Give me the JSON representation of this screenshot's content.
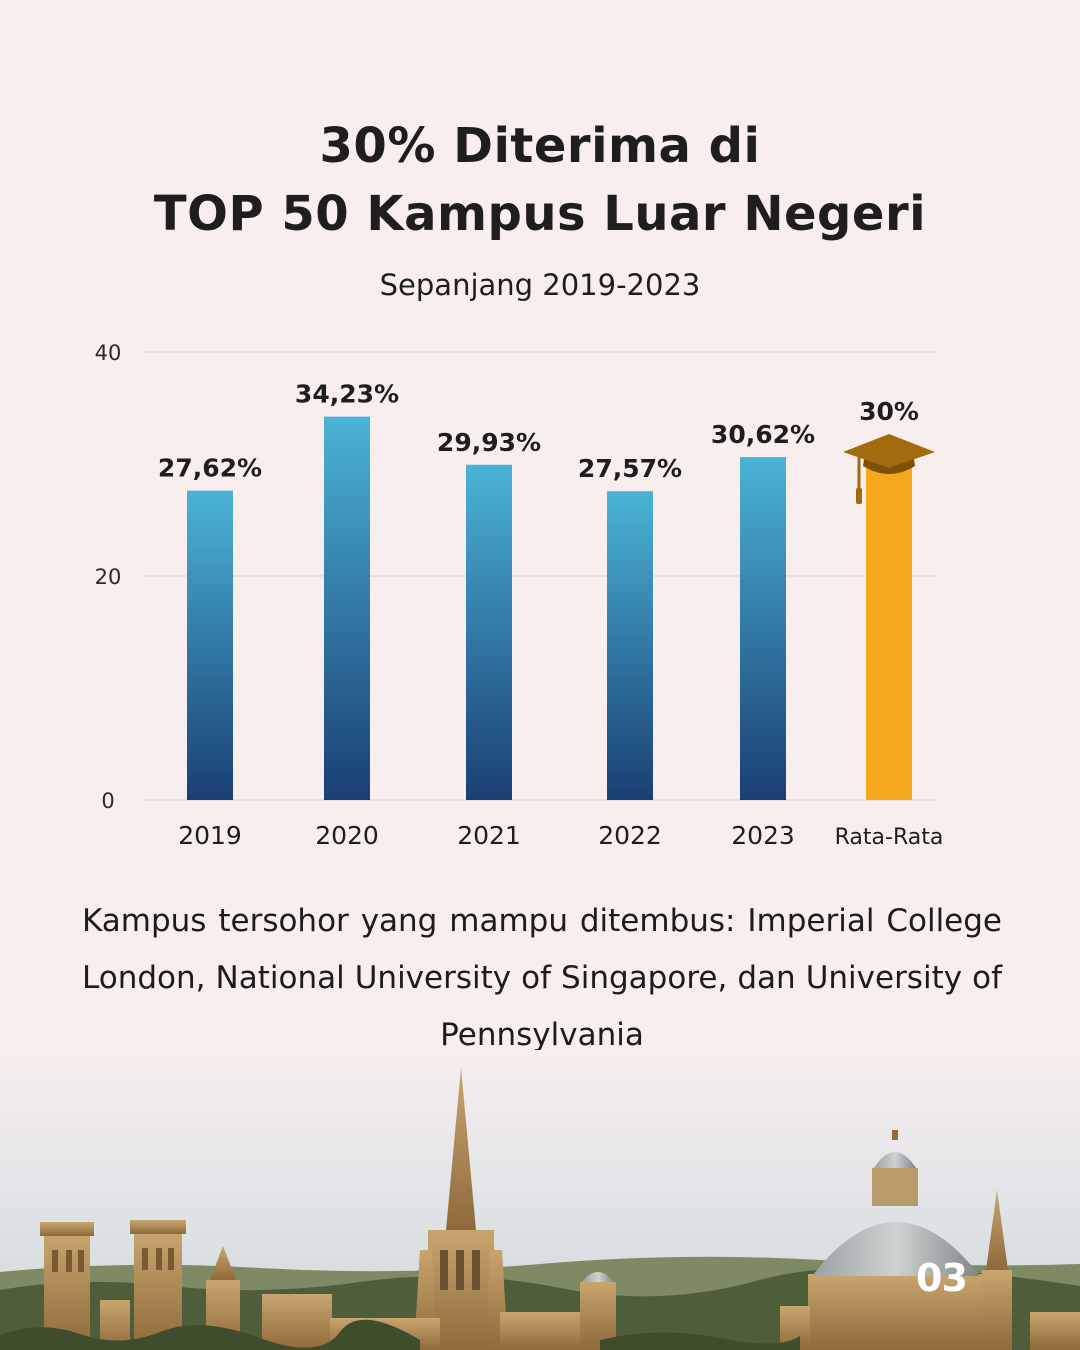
{
  "title": {
    "line1": "30% Diterima di",
    "line2": "TOP 50 Kampus Luar Negeri"
  },
  "subtitle": "Sepanjang 2019-2023",
  "caption": "Kampus tersohor yang mampu ditembus: Imperial College London, National University of Singapore, dan University of Pennsylvania",
  "page_number": "03",
  "chart_data": {
    "type": "bar",
    "categories": [
      "2019",
      "2020",
      "2021",
      "2022",
      "2023",
      "Rata-Rata"
    ],
    "values": [
      27.62,
      34.23,
      29.93,
      27.57,
      30.62,
      30
    ],
    "data_labels": [
      "27,62%",
      "34,23%",
      "29,93%",
      "27,57%",
      "30,62%",
      "30%"
    ],
    "highlight_category": "Rata-Rata",
    "ylim": [
      0,
      40
    ],
    "yticks": [
      0,
      20,
      40
    ],
    "grid": true,
    "xlabel": "",
    "ylabel": "",
    "colors": {
      "bar_top": "#4ab3d6",
      "bar_bottom": "#1a3f74",
      "highlight": "#f5a81c",
      "grid": "#e6dcdc",
      "graduation_cap": "#a36a0e"
    }
  }
}
